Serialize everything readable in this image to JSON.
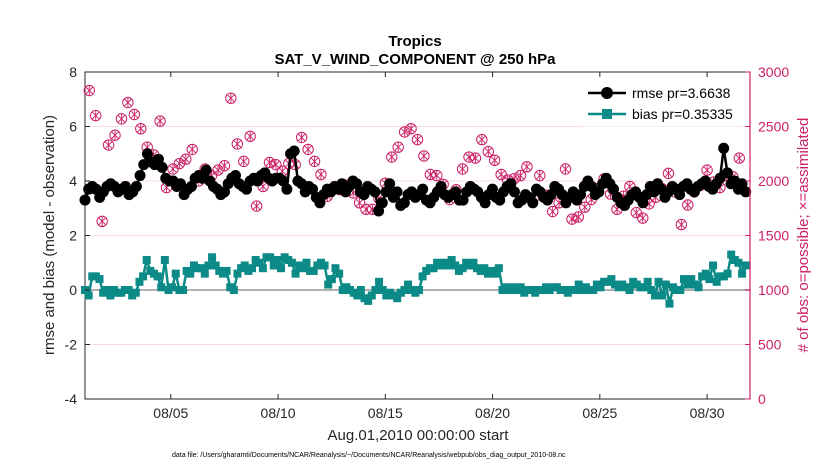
{
  "chart_data": {
    "type": "line",
    "title": "Tropics",
    "subtitle": "SAT_V_WIND_COMPONENT @ 250 hPa",
    "xlabel": "Aug.01,2010 00:00:00 start",
    "ylabel_left": "rmse and bias (model - observation)",
    "ylabel_right": "# of obs: o=possible; ×=assimilated",
    "footnote": "data file: /Users/gharamti/Documents/NCAR/Reanalysis/~/Documents/NCAR/Reanalysis/webpub/obs_diag_output_2010-08.nc",
    "xlim": [
      1,
      32
    ],
    "ylim_left": [
      -4,
      8
    ],
    "ylim_right": [
      0,
      3000
    ],
    "x_ticks": [
      5,
      10,
      15,
      20,
      25,
      30
    ],
    "x_tick_labels": [
      "08/05",
      "08/10",
      "08/15",
      "08/20",
      "08/25",
      "08/30"
    ],
    "y_left_ticks": [
      "-4",
      "-2",
      "0",
      "2",
      "4",
      "6",
      "8"
    ],
    "y_right_ticks": [
      "0",
      "500",
      "1000",
      "1500",
      "2000",
      "2500",
      "3000"
    ],
    "colors": {
      "rmse": "#000000",
      "bias": "#0b8a87",
      "obs": "#cc1f66",
      "zero_line": "#b0b0b0",
      "grid": "#f0b8c8"
    },
    "series": [
      {
        "name": "rmse pr=3.6638",
        "marker": "circle",
        "values": [
          3.3,
          3.7,
          3.8,
          3.7,
          3.4,
          3.6,
          3.8,
          3.9,
          3.8,
          3.6,
          3.7,
          3.8,
          3.5,
          3.6,
          3.8,
          4.2,
          4.6,
          5.0,
          4.7,
          4.6,
          4.8,
          4.5,
          4.1,
          4.0,
          4.0,
          3.8,
          3.9,
          3.5,
          3.7,
          3.8,
          4.1,
          4.2,
          4.1,
          4.4,
          4.0,
          3.8,
          3.7,
          3.5,
          3.6,
          3.9,
          4.1,
          4.2,
          3.9,
          3.8,
          3.7,
          4.0,
          4.1,
          4.0,
          4.2,
          4.3,
          4.1,
          4.0,
          4.1,
          4.1,
          4.0,
          3.7,
          5.0,
          5.1,
          4.0,
          3.9,
          3.6,
          3.8,
          3.7,
          3.4,
          3.2,
          3.5,
          3.7,
          3.6,
          3.8,
          3.7,
          3.9,
          3.6,
          3.8,
          4.0,
          3.9,
          3.6,
          3.5,
          3.8,
          3.7,
          3.6,
          2.9,
          3.2,
          3.6,
          3.9,
          3.4,
          3.6,
          3.1,
          3.2,
          3.5,
          3.6,
          3.4,
          3.5,
          3.7,
          3.3,
          3.2,
          3.4,
          3.6,
          3.8,
          3.5,
          3.4,
          3.5,
          3.6,
          3.3,
          3.3,
          3.6,
          3.8,
          3.7,
          3.6,
          3.4,
          3.2,
          3.5,
          3.7,
          3.4,
          3.3,
          3.6,
          3.8,
          3.9,
          3.6,
          3.2,
          3.3,
          3.5,
          3.4,
          3.2,
          3.7,
          3.6,
          3.4,
          3.3,
          3.5,
          3.8,
          3.7,
          3.5,
          3.2,
          3.4,
          3.6,
          3.3,
          3.5,
          3.8,
          4.0,
          3.8,
          3.5,
          3.6,
          3.9,
          4.1,
          3.9,
          3.7,
          3.4,
          3.2,
          3.1,
          3.3,
          3.5,
          3.6,
          3.4,
          3.2,
          3.5,
          3.8,
          3.6,
          3.9,
          3.7,
          3.4,
          3.6,
          3.8,
          3.7,
          3.5,
          3.8,
          3.9,
          3.7,
          3.6,
          3.8,
          3.9,
          4.0,
          3.8,
          3.7,
          3.9,
          4.1,
          5.2,
          4.3,
          3.9,
          4.0,
          3.7,
          3.9,
          3.6
        ],
        "note": "rmse"
      },
      {
        "name": "bias pr=0.35335",
        "marker": "square",
        "values": [
          0.0,
          -0.2,
          0.5,
          0.5,
          0.4,
          -0.1,
          0.0,
          -0.2,
          0.0,
          -0.1,
          -0.1,
          0.0,
          0.0,
          -0.2,
          -0.1,
          0.3,
          0.5,
          1.1,
          0.7,
          0.6,
          0.5,
          0.1,
          1.1,
          0.0,
          0.1,
          0.6,
          0.0,
          0.0,
          0.7,
          0.6,
          0.9,
          0.8,
          0.8,
          0.6,
          0.9,
          1.2,
          0.9,
          0.7,
          0.6,
          0.7,
          0.1,
          0.0,
          0.6,
          0.8,
          0.9,
          0.7,
          0.8,
          1.1,
          1.0,
          0.8,
          1.2,
          1.2,
          0.9,
          1.1,
          0.8,
          1.2,
          1.1,
          1.0,
          0.6,
          0.9,
          0.8,
          1.0,
          0.7,
          0.7,
          0.9,
          1.0,
          0.9,
          0.2,
          0.4,
          0.8,
          0.6,
          0.0,
          0.1,
          0.0,
          -0.1,
          -0.2,
          0.0,
          -0.3,
          -0.4,
          -0.2,
          0.0,
          0.3,
          0.0,
          -0.2,
          -0.1,
          -0.2,
          -0.3,
          -0.1,
          0.0,
          0.2,
          0.0,
          -0.1,
          0.0,
          0.5,
          0.7,
          0.8,
          0.8,
          1.0,
          0.9,
          1.0,
          0.9,
          1.1,
          0.9,
          0.7,
          0.8,
          1.0,
          0.9,
          1.0,
          0.8,
          0.7,
          0.8,
          0.6,
          0.7,
          0.6,
          0.8,
          0.0,
          0.1,
          0.0,
          0.1,
          0.0,
          0.1,
          -0.1,
          0.0,
          0.0,
          -0.1,
          0.0,
          0.0,
          0.1,
          0.0,
          0.1,
          0.1,
          0.0,
          0.0,
          -0.1,
          0.0,
          0.0,
          0.2,
          0.0,
          0.1,
          0.0,
          0.0,
          0.2,
          0.1,
          0.3,
          0.3,
          0.4,
          0.2,
          0.1,
          0.2,
          0.1,
          0.0,
          0.3,
          0.2,
          0.1,
          0.1,
          0.3,
          0.0,
          -0.2,
          0.3,
          -0.2,
          0.2,
          -0.5,
          0.1,
          0.0,
          0.0,
          0.4,
          0.2,
          0.4,
          0.2,
          0.1,
          0.5,
          0.6,
          0.4,
          0.9,
          0.3,
          0.5,
          0.5,
          0.6,
          1.3,
          1.1,
          1.0,
          0.6,
          0.9
        ]
      },
      {
        "name": "# of obs",
        "marker": "circle-x",
        "axis": "right",
        "x": [
          1.2,
          1.5,
          1.8,
          2.1,
          2.4,
          2.7,
          3.0,
          3.3,
          3.6,
          3.9,
          4.2,
          4.5,
          4.8,
          5.1,
          5.4,
          5.7,
          6.0,
          6.3,
          6.6,
          6.9,
          7.2,
          7.5,
          7.8,
          8.1,
          8.4,
          8.7,
          9.0,
          9.3,
          9.6,
          9.9,
          10.2,
          10.5,
          10.8,
          11.1,
          11.4,
          11.7,
          12.0,
          12.3,
          12.6,
          12.9,
          13.2,
          13.5,
          13.8,
          14.1,
          14.4,
          14.7,
          15.0,
          15.3,
          15.6,
          15.9,
          16.2,
          16.5,
          16.8,
          17.1,
          17.4,
          17.7,
          18.0,
          18.3,
          18.6,
          18.9,
          19.2,
          19.5,
          19.8,
          20.1,
          20.4,
          20.7,
          21.0,
          21.3,
          21.6,
          21.9,
          22.2,
          22.5,
          22.8,
          23.1,
          23.4,
          23.7,
          24.0,
          24.3,
          24.6,
          24.9,
          25.2,
          25.5,
          25.8,
          26.1,
          26.4,
          26.7,
          27.0,
          27.3,
          27.6,
          27.9,
          28.2,
          28.5,
          28.8,
          29.1,
          29.4,
          29.7,
          30.0,
          30.3,
          30.6,
          30.9,
          31.2,
          31.5
        ],
        "values": [
          2830,
          2600,
          1630,
          2330,
          2420,
          2570,
          2720,
          2610,
          2480,
          2310,
          2240,
          2550,
          1940,
          2110,
          2160,
          2200,
          2290,
          2000,
          2110,
          2050,
          2100,
          2140,
          2760,
          2340,
          2180,
          2410,
          1770,
          1950,
          2170,
          2150,
          2090,
          2160,
          2150,
          2400,
          2290,
          2180,
          2060,
          1860,
          1940,
          1920,
          1960,
          1890,
          1800,
          1740,
          1740,
          1840,
          1980,
          2220,
          2310,
          2450,
          2480,
          2380,
          2230,
          2060,
          2050,
          1970,
          1830,
          1920,
          2110,
          2220,
          2210,
          2380,
          2270,
          2190,
          2060,
          2010,
          2020,
          2050,
          2130,
          1840,
          2050,
          1870,
          1720,
          1800,
          2110,
          1650,
          1670,
          1760,
          1830,
          1930,
          2020,
          1880,
          1740,
          1860,
          1950,
          1710,
          1660,
          1790,
          1850,
          1930,
          2070,
          1900,
          1600,
          1780,
          1900,
          1960,
          2100,
          1990,
          1940,
          2050,
          2040,
          2210
        ],
        "note": "approximate"
      }
    ],
    "legend": {
      "placement": "top-right",
      "entries": [
        "rmse pr=3.6638",
        "bias pr=0.35335"
      ]
    }
  }
}
